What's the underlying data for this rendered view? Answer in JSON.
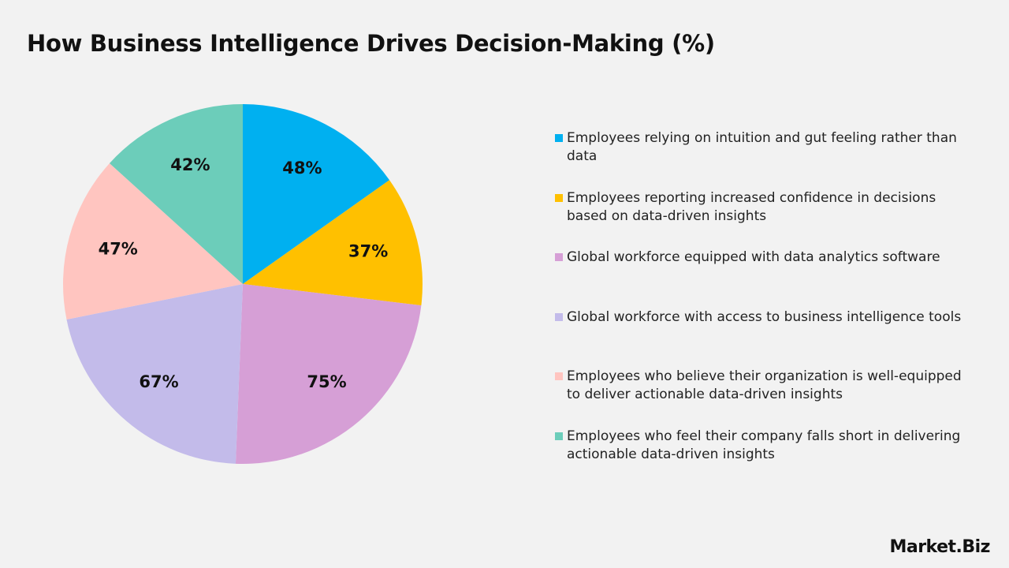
{
  "chart_data": {
    "type": "pie",
    "title": "How Business Intelligence Drives Decision-Making (%)",
    "categories": [
      "Employees relying on intuition and gut feeling rather than data",
      "Employees reporting increased confidence in decisions based on data-driven insights",
      "Global workforce equipped with data analytics software",
      "Global workforce with access to business intelligence tools",
      "Employees who believe their organization is well-equipped to deliver actionable data-driven insights",
      "Employees who feel their company falls short in delivering actionable data-driven insights"
    ],
    "values": [
      48,
      37,
      75,
      67,
      47,
      42
    ],
    "value_labels": [
      "48%",
      "37%",
      "75%",
      "67%",
      "47%",
      "42%"
    ],
    "colors": [
      "#00b0f0",
      "#ffc000",
      "#d69fd6",
      "#c3bbea",
      "#ffc5c0",
      "#6ccdba"
    ],
    "legend": "right"
  },
  "brand": "Market.Biz"
}
